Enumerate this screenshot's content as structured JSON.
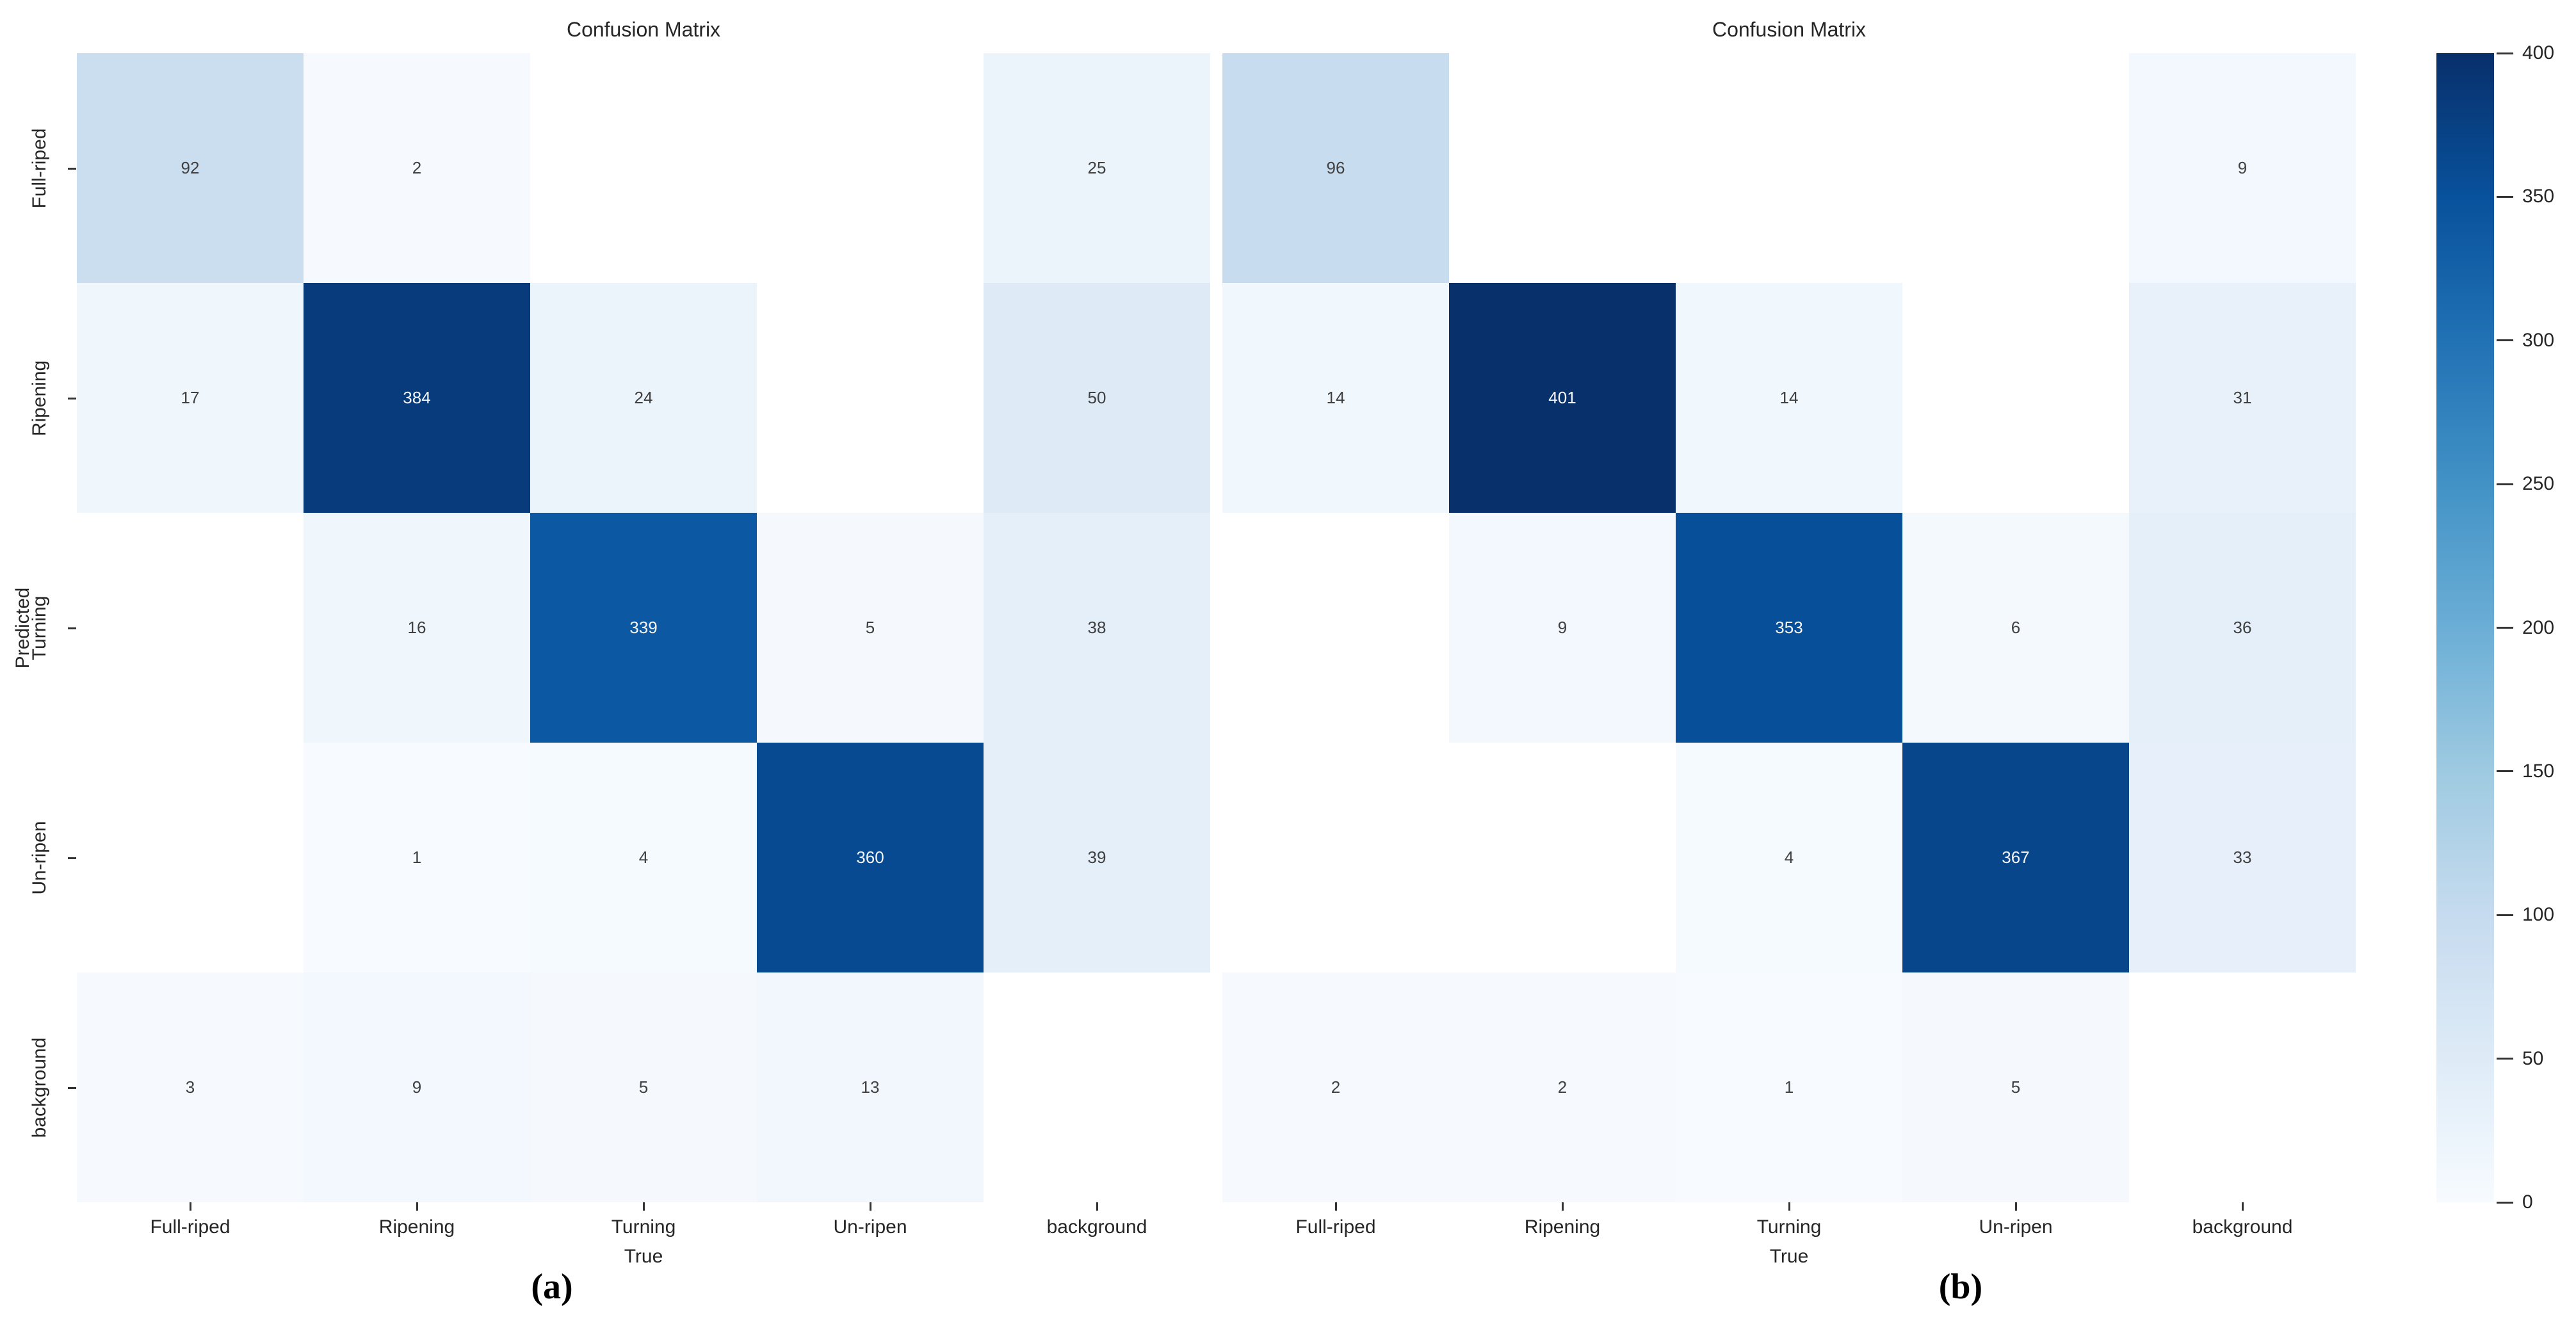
{
  "figure": {
    "background_color": "#ffffff",
    "colormap": {
      "name": "Blues",
      "stops": [
        "#f7fbff",
        "#deebf7",
        "#c6dbef",
        "#9ecae1",
        "#6baed6",
        "#4292c6",
        "#2171b5",
        "#08519c",
        "#08306b"
      ],
      "empty_cell_color": "#ffffff",
      "annotation_dark_text": "#404040",
      "annotation_light_text": "#f5f5f5"
    }
  },
  "chart_data": [
    {
      "type": "heatmap",
      "panel": "a",
      "title": "Confusion Matrix",
      "xlabel": "True",
      "ylabel": "Predicted",
      "caption": "(a)",
      "x_categories": [
        "Full-riped",
        "Ripening",
        "Turning",
        "Un-ripen",
        "background"
      ],
      "y_categories": [
        "Full-riped",
        "Ripening",
        "Turning",
        "Un-ripen",
        "background"
      ],
      "values": [
        [
          92,
          2,
          null,
          null,
          25
        ],
        [
          17,
          384,
          24,
          null,
          50
        ],
        [
          null,
          16,
          339,
          5,
          38
        ],
        [
          null,
          1,
          4,
          360,
          39
        ],
        [
          3,
          9,
          5,
          13,
          null
        ]
      ],
      "vmin": 0,
      "vmax": 400
    },
    {
      "type": "heatmap",
      "panel": "b",
      "title": "Confusion Matrix",
      "xlabel": "True",
      "ylabel": "",
      "caption": "(b)",
      "x_categories": [
        "Full-riped",
        "Ripening",
        "Turning",
        "Un-ripen",
        "background"
      ],
      "y_categories": [
        "Full-riped",
        "Ripening",
        "Turning",
        "Un-ripen",
        "background"
      ],
      "values": [
        [
          96,
          null,
          null,
          null,
          9
        ],
        [
          14,
          401,
          14,
          null,
          31
        ],
        [
          null,
          9,
          353,
          6,
          36
        ],
        [
          null,
          null,
          4,
          367,
          33
        ],
        [
          2,
          2,
          1,
          5,
          null
        ]
      ],
      "vmin": 0,
      "vmax": 400
    }
  ],
  "colorbar": {
    "min": 0,
    "max": 400,
    "ticks": [
      0,
      50,
      100,
      150,
      200,
      250,
      300,
      350,
      400
    ]
  }
}
